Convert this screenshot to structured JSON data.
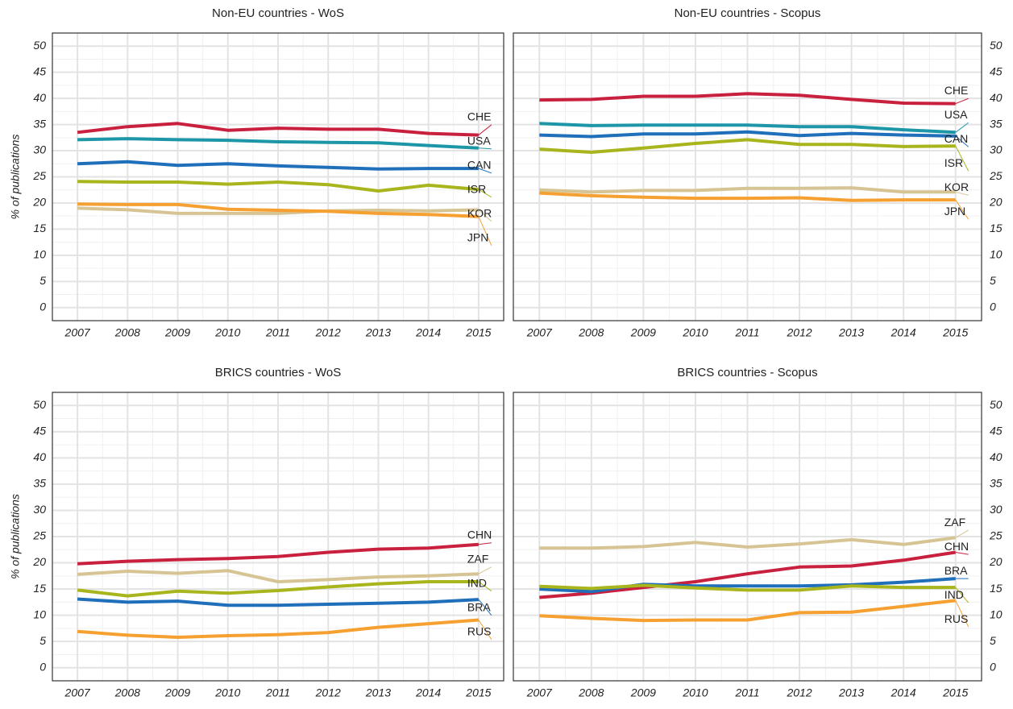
{
  "chart_data": [
    {
      "type": "line",
      "title": "Non-EU countries - WoS",
      "y_label": "% of publications",
      "x": [
        2007,
        2008,
        2009,
        2010,
        2011,
        2012,
        2013,
        2014,
        2015
      ],
      "xlim": [
        2006.5,
        2015.5
      ],
      "xticks": [
        2007,
        2008,
        2009,
        2010,
        2011,
        2012,
        2013,
        2014,
        2015
      ],
      "ylim": [
        -2.5,
        52.5
      ],
      "yticks": [
        0,
        5,
        10,
        15,
        20,
        25,
        30,
        35,
        40,
        45,
        50
      ],
      "grid": true,
      "y_axis_side": "left",
      "series": [
        {
          "name": "CHE",
          "color": "#c8203e",
          "values": [
            33.5,
            34.6,
            35.2,
            33.9,
            34.3,
            34.1,
            34.1,
            33.3,
            33.0
          ]
        },
        {
          "name": "USA",
          "color": "#1d97a8",
          "values": [
            32.1,
            32.3,
            32.1,
            32.0,
            31.7,
            31.6,
            31.5,
            31.0,
            30.5
          ]
        },
        {
          "name": "CAN",
          "color": "#1f6fba",
          "values": [
            27.5,
            27.9,
            27.2,
            27.5,
            27.1,
            26.8,
            26.5,
            26.6,
            26.6
          ]
        },
        {
          "name": "ISR",
          "color": "#a8b51c",
          "values": [
            24.1,
            24.0,
            24.0,
            23.6,
            24.0,
            23.5,
            22.3,
            23.4,
            22.6
          ]
        },
        {
          "name": "KOR",
          "color": "#d6c494",
          "values": [
            19.0,
            18.7,
            18.0,
            18.0,
            18.0,
            18.5,
            18.6,
            18.5,
            18.7
          ]
        },
        {
          "name": "JPN",
          "color": "#f5a030",
          "values": [
            19.8,
            19.7,
            19.7,
            18.8,
            18.6,
            18.4,
            18.0,
            17.8,
            17.4
          ]
        }
      ]
    },
    {
      "type": "line",
      "title": "Non-EU countries - Scopus",
      "x": [
        2007,
        2008,
        2009,
        2010,
        2011,
        2012,
        2013,
        2014,
        2015
      ],
      "xlim": [
        2006.5,
        2015.5
      ],
      "xticks": [
        2007,
        2008,
        2009,
        2010,
        2011,
        2012,
        2013,
        2014,
        2015
      ],
      "ylim": [
        -2.5,
        52.5
      ],
      "yticks": [
        0,
        5,
        10,
        15,
        20,
        25,
        30,
        35,
        40,
        45,
        50
      ],
      "grid": true,
      "y_axis_side": "right",
      "series": [
        {
          "name": "CHE",
          "color": "#c8203e",
          "values": [
            39.7,
            39.8,
            40.4,
            40.4,
            40.9,
            40.6,
            39.8,
            39.1,
            39.0
          ]
        },
        {
          "name": "USA",
          "color": "#1d97a8",
          "values": [
            35.2,
            34.8,
            34.9,
            34.9,
            34.9,
            34.6,
            34.6,
            34.0,
            33.5
          ]
        },
        {
          "name": "CAN",
          "color": "#1f6fba",
          "values": [
            33.0,
            32.7,
            33.2,
            33.2,
            33.6,
            32.9,
            33.3,
            33.0,
            32.8
          ]
        },
        {
          "name": "ISR",
          "color": "#a8b51c",
          "values": [
            30.3,
            29.7,
            30.5,
            31.4,
            32.1,
            31.2,
            31.2,
            30.8,
            30.9
          ]
        },
        {
          "name": "KOR",
          "color": "#d6c494",
          "values": [
            22.5,
            22.1,
            22.4,
            22.4,
            22.8,
            22.8,
            22.9,
            22.1,
            22.1
          ]
        },
        {
          "name": "JPN",
          "color": "#f5a030",
          "values": [
            21.9,
            21.4,
            21.1,
            20.9,
            20.9,
            21.0,
            20.5,
            20.6,
            20.6
          ]
        }
      ]
    },
    {
      "type": "line",
      "title": "BRICS countries - WoS",
      "y_label": "% of publications",
      "x": [
        2007,
        2008,
        2009,
        2010,
        2011,
        2012,
        2013,
        2014,
        2015
      ],
      "xlim": [
        2006.5,
        2015.5
      ],
      "xticks": [
        2007,
        2008,
        2009,
        2010,
        2011,
        2012,
        2013,
        2014,
        2015
      ],
      "ylim": [
        -2.5,
        52.5
      ],
      "yticks": [
        0,
        5,
        10,
        15,
        20,
        25,
        30,
        35,
        40,
        45,
        50
      ],
      "grid": true,
      "y_axis_side": "left",
      "series": [
        {
          "name": "CHN",
          "color": "#c8203e",
          "values": [
            19.8,
            20.3,
            20.6,
            20.8,
            21.2,
            22.0,
            22.6,
            22.8,
            23.5
          ]
        },
        {
          "name": "ZAF",
          "color": "#d6c494",
          "values": [
            17.8,
            18.4,
            18.0,
            18.5,
            16.4,
            16.8,
            17.3,
            17.5,
            17.9
          ]
        },
        {
          "name": "IND",
          "color": "#a8b51c",
          "values": [
            14.8,
            13.7,
            14.6,
            14.2,
            14.7,
            15.4,
            16.0,
            16.4,
            16.4
          ]
        },
        {
          "name": "BRA",
          "color": "#1f6fba",
          "values": [
            13.1,
            12.5,
            12.7,
            11.9,
            11.9,
            12.1,
            12.3,
            12.5,
            13.0
          ]
        },
        {
          "name": "RUS",
          "color": "#f5a030",
          "values": [
            6.9,
            6.2,
            5.8,
            6.1,
            6.3,
            6.7,
            7.7,
            8.4,
            9.1
          ]
        }
      ]
    },
    {
      "type": "line",
      "title": "BRICS countries - Scopus",
      "x": [
        2007,
        2008,
        2009,
        2010,
        2011,
        2012,
        2013,
        2014,
        2015
      ],
      "xlim": [
        2006.5,
        2015.5
      ],
      "xticks": [
        2007,
        2008,
        2009,
        2010,
        2011,
        2012,
        2013,
        2014,
        2015
      ],
      "ylim": [
        -2.5,
        52.5
      ],
      "yticks": [
        0,
        5,
        10,
        15,
        20,
        25,
        30,
        35,
        40,
        45,
        50
      ],
      "grid": true,
      "y_axis_side": "right",
      "series": [
        {
          "name": "ZAF",
          "color": "#d6c494",
          "values": [
            22.8,
            22.8,
            23.1,
            23.9,
            23.0,
            23.6,
            24.4,
            23.5,
            24.8
          ]
        },
        {
          "name": "CHN",
          "color": "#c8203e",
          "values": [
            13.4,
            14.2,
            15.3,
            16.4,
            17.9,
            19.2,
            19.4,
            20.5,
            22.0
          ]
        },
        {
          "name": "BRA",
          "color": "#1f6fba",
          "values": [
            15.0,
            14.5,
            15.9,
            15.6,
            15.6,
            15.6,
            15.8,
            16.3,
            17.0
          ]
        },
        {
          "name": "IND",
          "color": "#a8b51c",
          "values": [
            15.5,
            15.1,
            15.7,
            15.2,
            14.8,
            14.8,
            15.6,
            15.3,
            15.3
          ]
        },
        {
          "name": "RUS",
          "color": "#f5a030",
          "values": [
            9.9,
            9.4,
            9.0,
            9.1,
            9.1,
            10.5,
            10.6,
            11.7,
            12.8
          ]
        }
      ]
    }
  ]
}
